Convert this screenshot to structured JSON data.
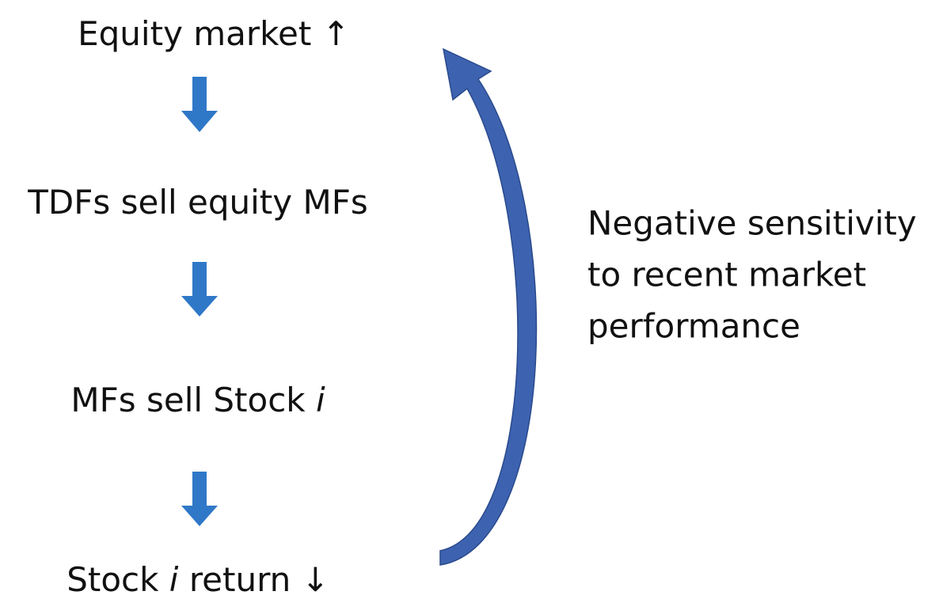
{
  "nodes": [
    {
      "parts": [
        "Equity market ↑"
      ]
    },
    {
      "parts": [
        "TDFs sell equity MFs"
      ]
    },
    {
      "parts": [
        "MFs sell Stock",
        "i"
      ]
    },
    {
      "parts": [
        "Stock",
        "i",
        "return ↓"
      ]
    }
  ],
  "feedback_label": {
    "lines": [
      "Negative sensitivity",
      "to recent market",
      "performance"
    ]
  }
}
